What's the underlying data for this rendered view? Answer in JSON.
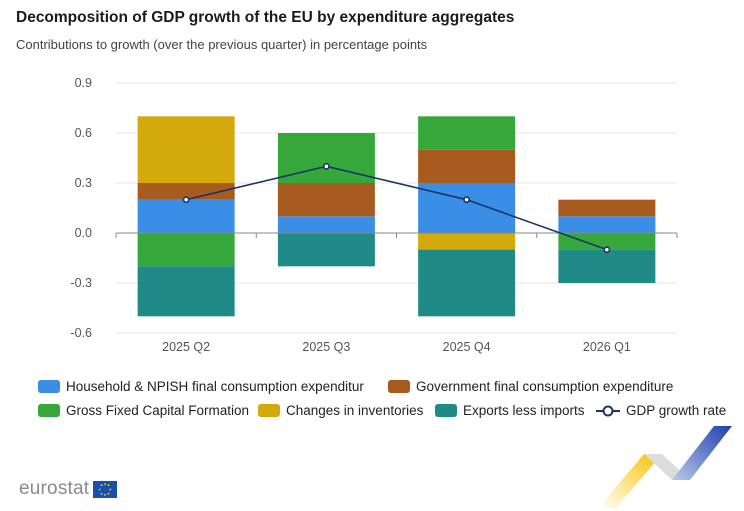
{
  "title": "Decomposition of GDP growth of the EU by expenditure aggregates",
  "subtitle": "Contributions to growth (over the previous quarter) in percentage points",
  "brand": {
    "name": "eurostat",
    "flag_color": "#1b4fa8",
    "star_color": "#ffd700"
  },
  "chart_data": {
    "type": "bar",
    "stacked": true,
    "categories": [
      "2025 Q2",
      "2025 Q3",
      "2025 Q4",
      "2026 Q1"
    ],
    "ylim": [
      -0.6,
      0.9
    ],
    "yticks": [
      "0.9",
      "0.6",
      "0.3",
      "0.0",
      "-0.3",
      "-0.6"
    ],
    "ytick_values": [
      0.9,
      0.6,
      0.3,
      0.0,
      -0.3,
      -0.6
    ],
    "grid": true,
    "legend_position": "bottom",
    "series": [
      {
        "name": "Household & NPISH final consumption expenditure",
        "legend_label": "Household & NPISH final consumption expenditur",
        "color": "#3a8ee6",
        "values": [
          0.2,
          0.1,
          0.3,
          0.1
        ]
      },
      {
        "name": "Government final consumption expenditure",
        "legend_label": "Government final consumption expenditure",
        "color": "#a85b1e",
        "values": [
          0.1,
          0.2,
          0.2,
          0.1
        ]
      },
      {
        "name": "Gross Fixed Capital Formation",
        "legend_label": "Gross Fixed Capital Formation",
        "color": "#36a83b",
        "values": [
          -0.2,
          0.3,
          0.2,
          -0.1
        ]
      },
      {
        "name": "Changes in inventories",
        "legend_label": "Changes in inventories",
        "color": "#d4a90c",
        "values": [
          0.4,
          0.0,
          -0.1,
          0.0
        ]
      },
      {
        "name": "Exports less imports",
        "legend_label": "Exports less imports",
        "color": "#208a86",
        "values": [
          -0.3,
          -0.2,
          -0.4,
          -0.2
        ]
      }
    ],
    "line": {
      "name": "GDP growth rate",
      "color": "#1c3466",
      "values": [
        0.2,
        0.4,
        0.2,
        -0.1
      ]
    }
  }
}
